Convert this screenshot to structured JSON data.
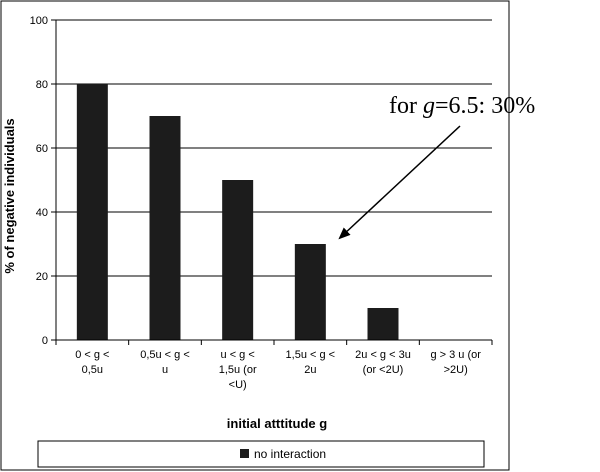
{
  "chart_data": {
    "type": "bar",
    "title": "",
    "xlabel": "initial atttitude g",
    "ylabel": "% of negative individuals",
    "ylim": [
      0,
      100
    ],
    "yticks": [
      0,
      20,
      40,
      60,
      80,
      100
    ],
    "grid": true,
    "legend_position": "bottom",
    "categories": [
      [
        "0 < g <",
        "0,5u"
      ],
      [
        "0,5u < g <",
        "u"
      ],
      [
        "u < g <",
        "1,5u (or",
        "<U)"
      ],
      [
        "1,5u < g <",
        "2u"
      ],
      [
        "2u < g < 3u",
        "(or <2U)"
      ],
      [
        "g > 3 u (or",
        ">2U)"
      ]
    ],
    "series": [
      {
        "name": "no interaction",
        "values": [
          80,
          70,
          50,
          30,
          10,
          0
        ]
      }
    ],
    "bar_color": "#1c1c1c",
    "annotation": {
      "prefix": "for ",
      "variable": "g",
      "suffix": "=6.5: 30%",
      "target_category_index": 3
    }
  }
}
